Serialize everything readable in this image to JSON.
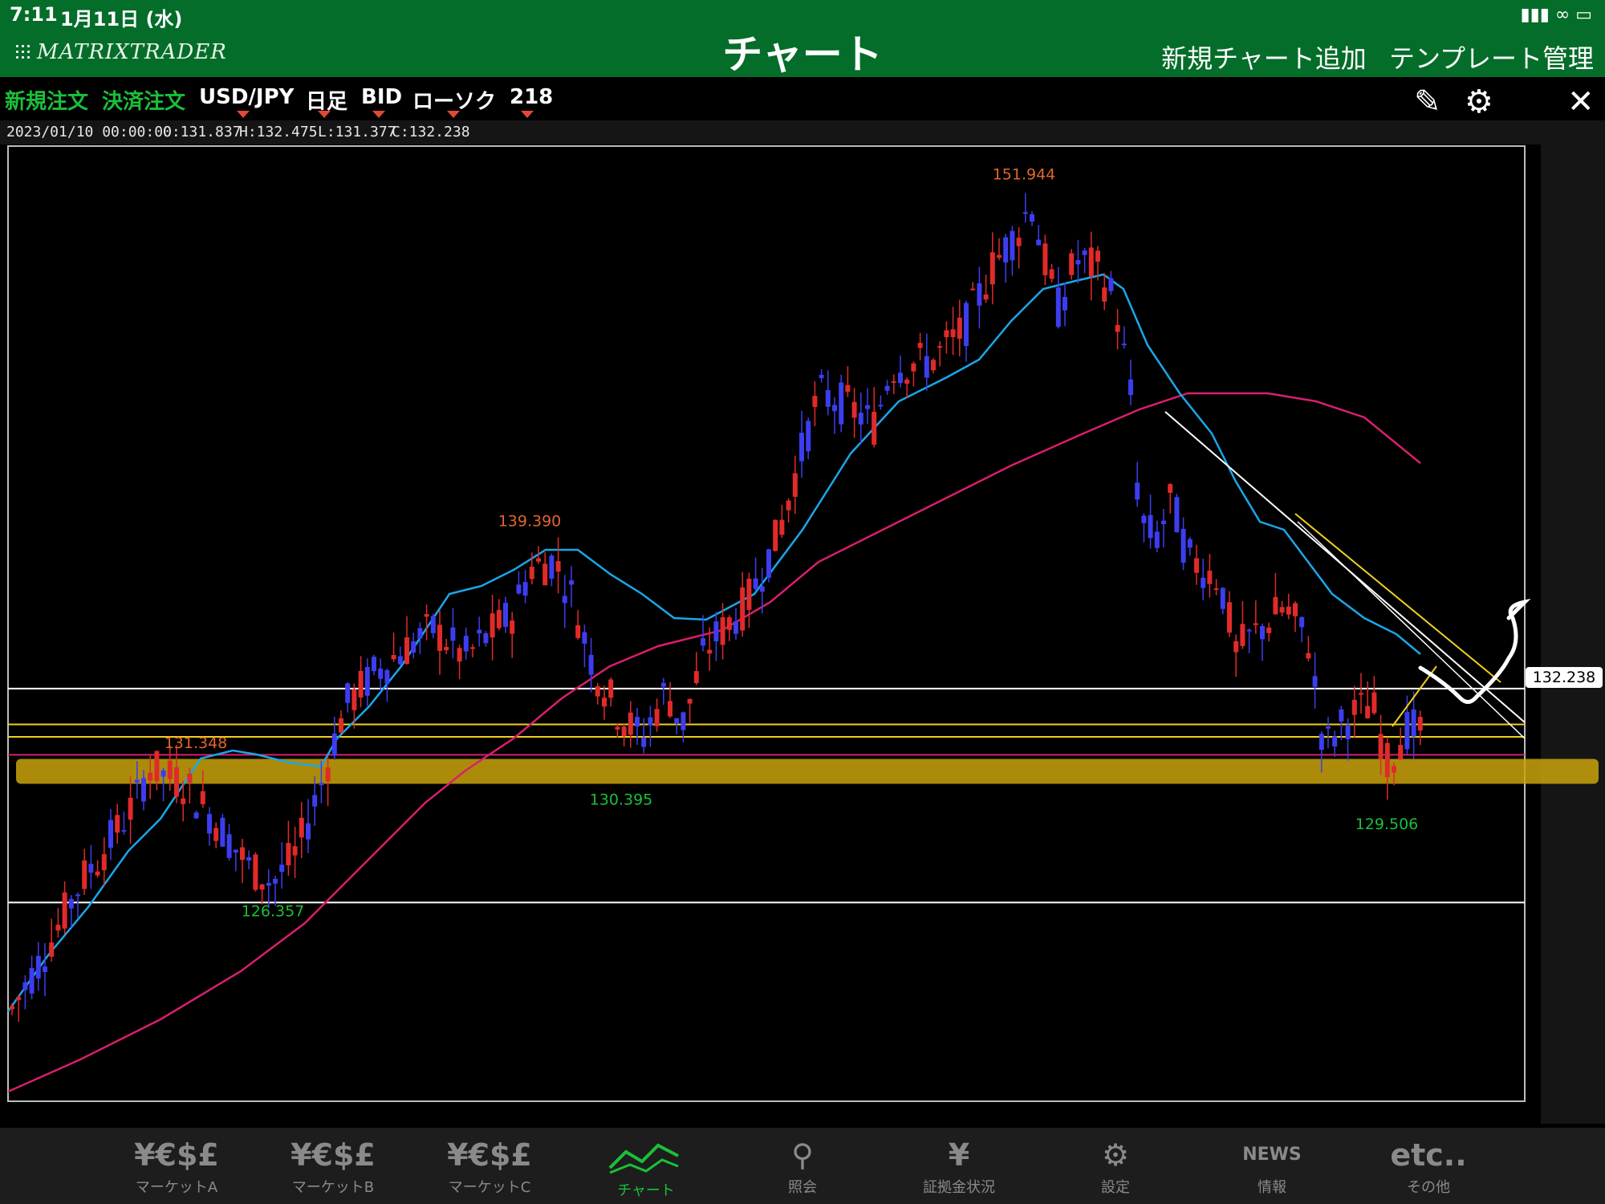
{
  "status_bar": {
    "time": "7:11",
    "date": "1月11日 (水)"
  },
  "app": {
    "logo": "MATRIXTRADER",
    "title": "チャート",
    "add_chart": "新規チャート追加",
    "template_mgmt": "テンプレート管理"
  },
  "toolbar": {
    "new_order": "新規注文",
    "settle_order": "決済注文",
    "pair": "USD/JPY",
    "period": "日足",
    "price_type": "BID",
    "chart_style": "ローソク",
    "count": "218",
    "icons": [
      "pencil-icon",
      "gear-icon",
      "close-icon"
    ]
  },
  "info": {
    "datetime": "2023/01/10 00:00:00",
    "open": "O:131.837",
    "high": "H:132.475",
    "low": "L:131.377",
    "close": "C:132.238"
  },
  "chart_data": {
    "type": "candlestick",
    "symbol": "USD/JPY",
    "ylim": [
      118.9,
      153.5
    ],
    "colors": {
      "up": "#e12a2a",
      "down": "#3d3df0",
      "ma_short": "#1aa7e8",
      "ma_long": "#d91e6f",
      "support_band": "#c9a30a"
    },
    "annotations": [
      {
        "label": "151.944",
        "value": 151.944,
        "color": "#e0662a",
        "kind": "high"
      },
      {
        "label": "139.390",
        "value": 139.39,
        "color": "#e0662a",
        "kind": "high"
      },
      {
        "label": "131.348",
        "value": 131.348,
        "color": "#e0662a",
        "kind": "high"
      },
      {
        "label": "130.395",
        "value": 130.395,
        "color": "#19c039",
        "kind": "low"
      },
      {
        "label": "126.357",
        "value": 126.357,
        "color": "#19c039",
        "kind": "low"
      },
      {
        "label": "129.506",
        "value": 129.506,
        "color": "#19c039",
        "kind": "low"
      }
    ],
    "horizontal_lines": [
      {
        "value": 133.85,
        "color": "#ffffff"
      },
      {
        "value": 132.55,
        "color": "#f0d020"
      },
      {
        "value": 132.1,
        "color": "#f0d020"
      },
      {
        "value": 131.45,
        "color": "#d91e6f"
      },
      {
        "value": 126.1,
        "color": "#ffffff"
      }
    ],
    "support_band": [
      130.4,
      131.3
    ],
    "current_price": "132.238",
    "current_price_value": 132.238
  },
  "tabs": [
    {
      "icon": "¥€$£",
      "label": "マーケットA",
      "active": false
    },
    {
      "icon": "¥€$£",
      "label": "マーケットB",
      "active": false
    },
    {
      "icon": "¥€$£",
      "label": "マーケットC",
      "active": false
    },
    {
      "icon": "chart",
      "label": "チャート",
      "active": true
    },
    {
      "icon": "search",
      "label": "照会",
      "active": false
    },
    {
      "icon": "¥",
      "label": "証拠金状況",
      "active": false
    },
    {
      "icon": "gear",
      "label": "設定",
      "active": false
    },
    {
      "icon": "NEWS",
      "label": "情報",
      "active": false
    },
    {
      "icon": "etc..",
      "label": "その他",
      "active": false
    }
  ]
}
